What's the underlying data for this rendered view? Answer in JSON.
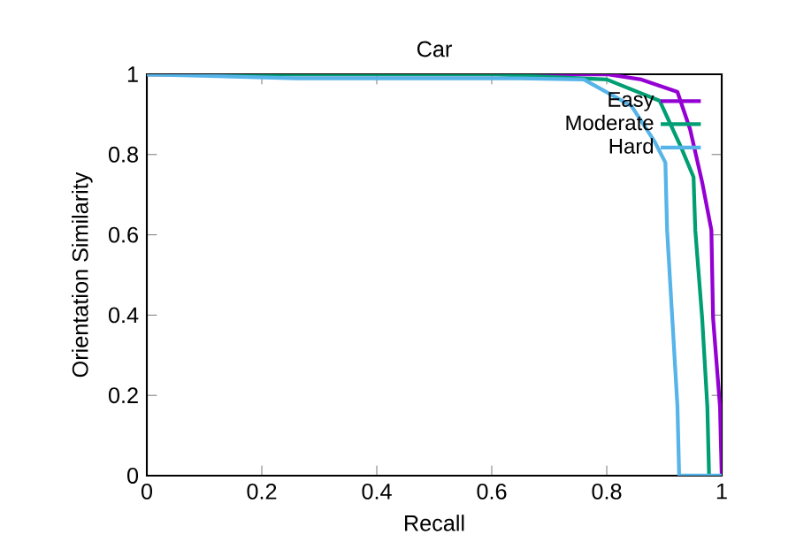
{
  "chart_data": {
    "type": "line",
    "title": "Car",
    "xlabel": "Recall",
    "ylabel": "Orientation Similarity",
    "xlim": [
      0,
      1
    ],
    "ylim": [
      0,
      1
    ],
    "xticks": [
      0,
      0.2,
      0.4,
      0.6,
      0.8,
      1
    ],
    "yticks": [
      0,
      0.2,
      0.4,
      0.6,
      0.8,
      1
    ],
    "legend": "top right",
    "marker": "none",
    "line_style": "solid",
    "series": [
      {
        "name": "Easy",
        "color": "#9400d3",
        "x": [
          0,
          0.8,
          0.86,
          0.923,
          0.945,
          0.966,
          0.982,
          0.985,
          0.997,
          1.0
        ],
        "values": [
          1,
          1,
          0.987,
          0.956,
          0.863,
          0.731,
          0.612,
          0.392,
          0.172,
          0
        ]
      },
      {
        "name": "Moderate",
        "color": "#009e73",
        "x": [
          0,
          0.6,
          0.8,
          0.892,
          0.929,
          0.951,
          0.954,
          0.966,
          0.975,
          0.978
        ],
        "values": [
          1,
          1,
          0.987,
          0.934,
          0.819,
          0.744,
          0.612,
          0.392,
          0.172,
          0
        ]
      },
      {
        "name": "Hard",
        "color": "#56b4e9",
        "x": [
          0,
          0.26,
          0.65,
          0.76,
          0.843,
          0.883,
          0.902,
          0.905,
          0.914,
          0.923,
          0.926,
          1.0
        ],
        "values": [
          1,
          0.99,
          0.99,
          0.987,
          0.921,
          0.833,
          0.78,
          0.612,
          0.392,
          0.172,
          0,
          0
        ]
      }
    ]
  }
}
